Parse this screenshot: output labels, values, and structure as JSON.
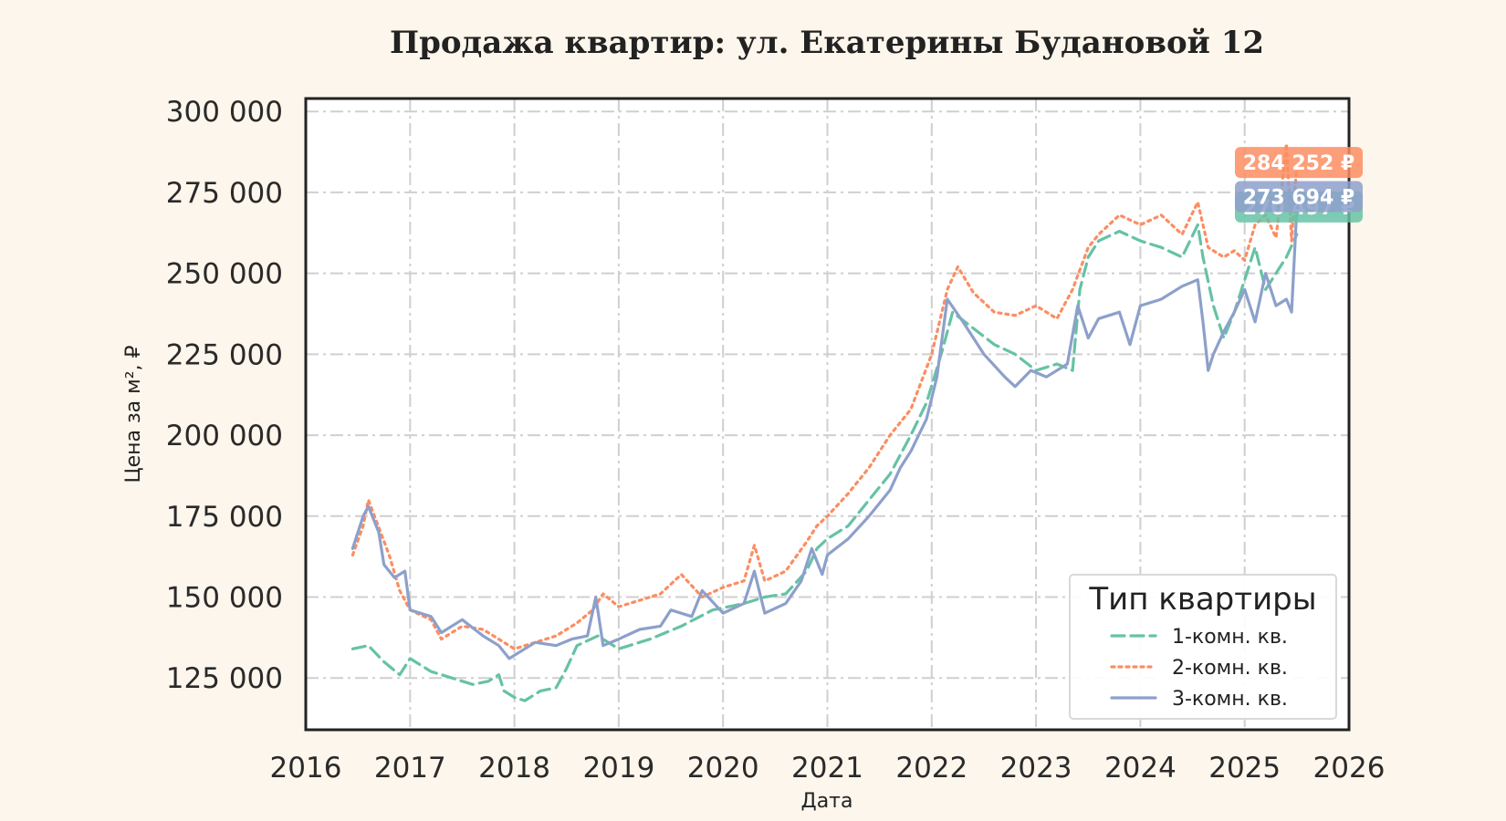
{
  "chart_data": {
    "type": "line",
    "title": "Продажа квартир: ул. Екатерины Будановой 12",
    "xlabel": "Дата",
    "ylabel": "Цена за м², ₽",
    "xlim": [
      2016.0,
      2026.0
    ],
    "ylim": [
      109000,
      304000
    ],
    "x_ticks": [
      2016,
      2017,
      2018,
      2019,
      2020,
      2021,
      2022,
      2023,
      2024,
      2025,
      2026
    ],
    "x_tick_labels": [
      "2016",
      "2017",
      "2018",
      "2019",
      "2020",
      "2021",
      "2022",
      "2023",
      "2024",
      "2025",
      "2026"
    ],
    "y_ticks": [
      125000,
      150000,
      175000,
      200000,
      225000,
      250000,
      275000,
      300000
    ],
    "y_tick_labels": [
      "125 000",
      "150 000",
      "175 000",
      "200 000",
      "225 000",
      "250 000",
      "275 000",
      "300 000"
    ],
    "grid": true,
    "legend": {
      "title": "Тип квартиры",
      "position": "bottom-right"
    },
    "series": [
      {
        "name": "1-комн. кв.",
        "color": "#66c2a5",
        "style": "dashed",
        "x": [
          2016.45,
          2016.6,
          2016.75,
          2016.9,
          2017.0,
          2017.2,
          2017.4,
          2017.6,
          2017.75,
          2017.85,
          2017.9,
          2018.0,
          2018.1,
          2018.25,
          2018.4,
          2018.5,
          2018.6,
          2018.8,
          2019.0,
          2019.3,
          2019.6,
          2019.9,
          2020.2,
          2020.4,
          2020.6,
          2020.8,
          2020.9,
          2021.0,
          2021.2,
          2021.4,
          2021.6,
          2021.8,
          2021.95,
          2022.1,
          2022.2,
          2022.4,
          2022.6,
          2022.8,
          2023.0,
          2023.2,
          2023.35,
          2023.42,
          2023.5,
          2023.6,
          2023.8,
          2024.0,
          2024.2,
          2024.4,
          2024.55,
          2024.6,
          2024.7,
          2024.8,
          2024.9,
          2025.0,
          2025.1,
          2025.2,
          2025.3,
          2025.4,
          2025.5
        ],
        "y": [
          134000,
          135000,
          130000,
          126000,
          131000,
          127000,
          125000,
          123000,
          124000,
          126000,
          121000,
          119000,
          118000,
          121000,
          122000,
          128000,
          135000,
          138000,
          134000,
          137000,
          141000,
          146000,
          148000,
          150000,
          151000,
          158000,
          165000,
          168000,
          172000,
          180000,
          188000,
          200000,
          210000,
          226000,
          238000,
          233000,
          228000,
          225000,
          220000,
          222000,
          220000,
          245000,
          255000,
          260000,
          263000,
          260000,
          258000,
          255000,
          265000,
          255000,
          240000,
          230000,
          238000,
          248000,
          258000,
          245000,
          250000,
          255000,
          262000
        ]
      },
      {
        "name": "2-комн. кв.",
        "color": "#fc8d62",
        "style": "dotted",
        "x": [
          2016.45,
          2016.55,
          2016.6,
          2016.8,
          2016.9,
          2017.0,
          2017.2,
          2017.3,
          2017.5,
          2017.7,
          2017.9,
          2018.0,
          2018.2,
          2018.4,
          2018.6,
          2018.75,
          2018.85,
          2019.0,
          2019.2,
          2019.4,
          2019.6,
          2019.8,
          2020.0,
          2020.2,
          2020.3,
          2020.4,
          2020.6,
          2020.8,
          2020.9,
          2021.0,
          2021.2,
          2021.4,
          2021.6,
          2021.8,
          2022.0,
          2022.15,
          2022.25,
          2022.4,
          2022.6,
          2022.8,
          2023.0,
          2023.2,
          2023.35,
          2023.5,
          2023.6,
          2023.8,
          2024.0,
          2024.2,
          2024.4,
          2024.55,
          2024.65,
          2024.8,
          2024.9,
          2025.0,
          2025.1,
          2025.2,
          2025.3,
          2025.35,
          2025.4,
          2025.45,
          2025.5
        ],
        "y": [
          163000,
          172000,
          180000,
          163000,
          152000,
          146000,
          143000,
          137000,
          141000,
          140000,
          136000,
          134000,
          136000,
          138000,
          142000,
          146000,
          151000,
          147000,
          149000,
          151000,
          157000,
          150000,
          153000,
          155000,
          166000,
          155000,
          158000,
          167000,
          172000,
          175000,
          182000,
          190000,
          200000,
          208000,
          225000,
          245000,
          252000,
          244000,
          238000,
          237000,
          240000,
          236000,
          245000,
          258000,
          262000,
          268000,
          265000,
          268000,
          262000,
          272000,
          258000,
          255000,
          257000,
          254000,
          265000,
          268000,
          261000,
          275000,
          290000,
          260000,
          284000
        ]
      },
      {
        "name": "3-комн. кв.",
        "color": "#8da0cb",
        "style": "solid",
        "x": [
          2016.45,
          2016.55,
          2016.6,
          2016.7,
          2016.75,
          2016.85,
          2016.95,
          2017.0,
          2017.2,
          2017.3,
          2017.5,
          2017.7,
          2017.85,
          2017.95,
          2018.05,
          2018.2,
          2018.4,
          2018.55,
          2018.7,
          2018.78,
          2018.85,
          2019.0,
          2019.2,
          2019.4,
          2019.5,
          2019.7,
          2019.8,
          2020.0,
          2020.2,
          2020.3,
          2020.4,
          2020.6,
          2020.75,
          2020.85,
          2020.95,
          2021.0,
          2021.2,
          2021.4,
          2021.6,
          2021.7,
          2021.8,
          2021.95,
          2022.05,
          2022.15,
          2022.3,
          2022.5,
          2022.7,
          2022.8,
          2022.95,
          2023.1,
          2023.3,
          2023.4,
          2023.5,
          2023.6,
          2023.8,
          2023.9,
          2024.0,
          2024.2,
          2024.4,
          2024.55,
          2024.6,
          2024.65,
          2024.7,
          2024.8,
          2024.9,
          2025.0,
          2025.1,
          2025.2,
          2025.3,
          2025.4,
          2025.45,
          2025.5
        ],
        "y": [
          165000,
          175000,
          178000,
          170000,
          160000,
          156000,
          158000,
          146000,
          144000,
          139000,
          143000,
          138000,
          135000,
          131000,
          133000,
          136000,
          135000,
          137000,
          138000,
          150000,
          135000,
          137000,
          140000,
          141000,
          146000,
          144000,
          152000,
          145000,
          148000,
          158000,
          145000,
          148000,
          155000,
          165000,
          157000,
          163000,
          168000,
          175000,
          183000,
          190000,
          195000,
          205000,
          218000,
          242000,
          235000,
          225000,
          218000,
          215000,
          220000,
          218000,
          222000,
          240000,
          230000,
          236000,
          238000,
          228000,
          240000,
          242000,
          246000,
          248000,
          235000,
          220000,
          225000,
          232000,
          238000,
          245000,
          235000,
          250000,
          240000,
          242000,
          238000,
          270000
        ]
      }
    ],
    "end_labels": [
      {
        "text": "284 252 ₽",
        "value": 284252,
        "color": "#fc8d62"
      },
      {
        "text": "270 497 ₽",
        "value": 270497,
        "color": "#66c2a5"
      },
      {
        "text": "273 694 ₽",
        "value": 273694,
        "color": "#8da0cb"
      }
    ]
  }
}
